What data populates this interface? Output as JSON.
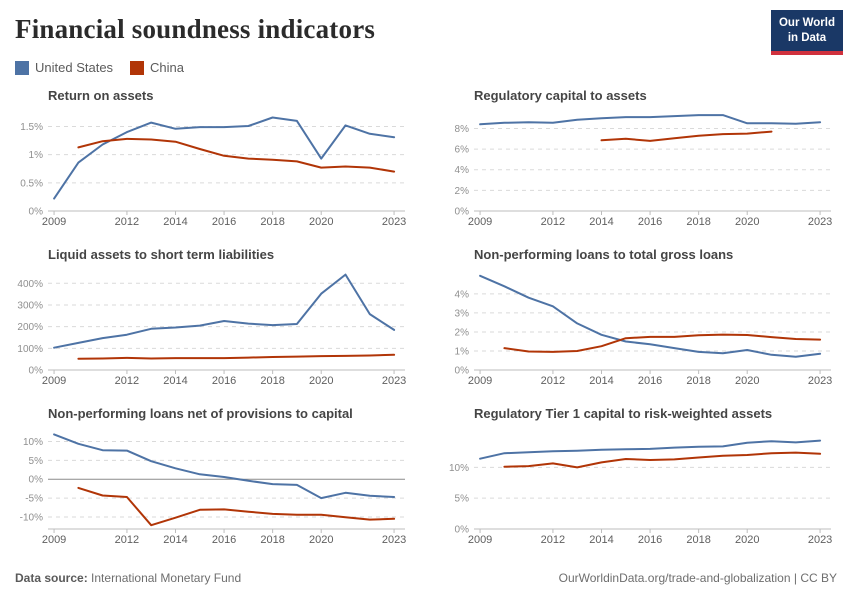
{
  "header": {
    "title": "Financial soundness indicators",
    "logo": {
      "line1": "Our World",
      "line2": "in Data"
    }
  },
  "legend": {
    "items": [
      {
        "label": "United States",
        "color": "#4e73a5"
      },
      {
        "label": "China",
        "color": "#b13507"
      }
    ]
  },
  "footer": {
    "source_label": "Data source:",
    "source_value": "International Monetary Fund",
    "credit": "OurWorldinData.org/trade-and-globalization | CC BY"
  },
  "colors": {
    "united_states": "#4e73a5",
    "china": "#b13507",
    "grid_dash": "#dadada",
    "axis_line": "#bdbdbd",
    "zero_line": "#8c8c8c",
    "x_tick_label": "#606060",
    "y_tick_label": "#8f8f8f",
    "logo_bg": "#1a3866",
    "logo_accent": "#d0313d"
  },
  "chart_data": [
    {
      "type": "line",
      "title": "Return on assets",
      "x_domain": [
        2008.75,
        2023.45
      ],
      "x_ticks": [
        2009,
        2012,
        2014,
        2016,
        2018,
        2020,
        2023
      ],
      "y_min": 0,
      "y_max": 1.74,
      "y_ticks": [
        {
          "v": 0,
          "label": "0%"
        },
        {
          "v": 0.5,
          "label": "0.5%"
        },
        {
          "v": 1,
          "label": "1%"
        },
        {
          "v": 1.5,
          "label": "1.5%"
        }
      ],
      "zero_line": false,
      "series": [
        {
          "name": "United States",
          "color": "#4e73a5",
          "years": [
            2009,
            2010,
            2011,
            2012,
            2013,
            2014,
            2015,
            2016,
            2017,
            2018,
            2019,
            2020,
            2021,
            2022,
            2023
          ],
          "values": [
            0.22,
            0.86,
            1.18,
            1.4,
            1.57,
            1.46,
            1.49,
            1.49,
            1.51,
            1.66,
            1.6,
            0.93,
            1.52,
            1.37,
            1.31
          ]
        },
        {
          "name": "China",
          "color": "#b13507",
          "years": [
            2010,
            2011,
            2012,
            2013,
            2014,
            2015,
            2016,
            2017,
            2018,
            2019,
            2020,
            2021,
            2022,
            2023
          ],
          "values": [
            1.13,
            1.24,
            1.28,
            1.27,
            1.23,
            1.1,
            0.98,
            0.93,
            0.91,
            0.88,
            0.77,
            0.79,
            0.77,
            0.7
          ]
        }
      ]
    },
    {
      "type": "line",
      "title": "Regulatory capital to assets",
      "x_domain": [
        2008.75,
        2023.45
      ],
      "x_ticks": [
        2009,
        2012,
        2014,
        2016,
        2018,
        2020,
        2023
      ],
      "y_min": 0,
      "y_max": 9.5,
      "y_ticks": [
        {
          "v": 0,
          "label": "0%"
        },
        {
          "v": 2,
          "label": "2%"
        },
        {
          "v": 4,
          "label": "4%"
        },
        {
          "v": 6,
          "label": "6%"
        },
        {
          "v": 8,
          "label": "8%"
        }
      ],
      "zero_line": false,
      "series": [
        {
          "name": "United States",
          "color": "#4e73a5",
          "years": [
            2009,
            2010,
            2011,
            2012,
            2013,
            2014,
            2015,
            2016,
            2017,
            2018,
            2019,
            2020,
            2021,
            2022,
            2023
          ],
          "values": [
            8.4,
            8.55,
            8.6,
            8.55,
            8.85,
            9.0,
            9.1,
            9.1,
            9.2,
            9.3,
            9.3,
            8.5,
            8.5,
            8.45,
            8.6
          ]
        },
        {
          "name": "China",
          "color": "#b13507",
          "years": [
            2014,
            2015,
            2016,
            2017,
            2018,
            2019,
            2020,
            2021
          ],
          "values": [
            6.85,
            7.0,
            6.8,
            7.05,
            7.3,
            7.45,
            7.5,
            7.7
          ]
        }
      ]
    },
    {
      "type": "line",
      "title": "Liquid assets to short term liabilities",
      "x_domain": [
        2008.75,
        2023.45
      ],
      "x_ticks": [
        2009,
        2012,
        2014,
        2016,
        2018,
        2020,
        2023
      ],
      "y_min": 0,
      "y_max": 452,
      "y_ticks": [
        {
          "v": 0,
          "label": "0%"
        },
        {
          "v": 100,
          "label": "100%"
        },
        {
          "v": 200,
          "label": "200%"
        },
        {
          "v": 300,
          "label": "300%"
        },
        {
          "v": 400,
          "label": "400%"
        }
      ],
      "zero_line": false,
      "series": [
        {
          "name": "United States",
          "color": "#4e73a5",
          "years": [
            2009,
            2010,
            2011,
            2012,
            2013,
            2014,
            2015,
            2016,
            2017,
            2018,
            2019,
            2020,
            2021,
            2022,
            2023
          ],
          "values": [
            103,
            125,
            147,
            163,
            190,
            196,
            205,
            226,
            214,
            207,
            212,
            352,
            440,
            258,
            185
          ]
        },
        {
          "name": "China",
          "color": "#b13507",
          "years": [
            2010,
            2011,
            2012,
            2013,
            2014,
            2015,
            2016,
            2017,
            2018,
            2019,
            2020,
            2021,
            2022,
            2023
          ],
          "values": [
            52,
            53,
            56,
            53,
            55,
            55,
            55,
            57,
            60,
            62,
            64,
            65,
            67,
            70
          ]
        }
      ]
    },
    {
      "type": "line",
      "title": "Non-performing loans to total gross loans",
      "x_domain": [
        2008.75,
        2023.45
      ],
      "x_ticks": [
        2009,
        2012,
        2014,
        2016,
        2018,
        2020,
        2023
      ],
      "y_min": 0,
      "y_max": 5.15,
      "y_ticks": [
        {
          "v": 0,
          "label": "0%"
        },
        {
          "v": 1,
          "label": "1%"
        },
        {
          "v": 2,
          "label": "2%"
        },
        {
          "v": 3,
          "label": "3%"
        },
        {
          "v": 4,
          "label": "4%"
        }
      ],
      "zero_line": false,
      "series": [
        {
          "name": "United States",
          "color": "#4e73a5",
          "years": [
            2009,
            2010,
            2011,
            2012,
            2013,
            2014,
            2015,
            2016,
            2017,
            2018,
            2019,
            2020,
            2021,
            2022,
            2023
          ],
          "values": [
            4.95,
            4.4,
            3.8,
            3.35,
            2.45,
            1.85,
            1.5,
            1.35,
            1.15,
            0.95,
            0.88,
            1.05,
            0.8,
            0.7,
            0.85
          ]
        },
        {
          "name": "China",
          "color": "#b13507",
          "years": [
            2010,
            2011,
            2012,
            2013,
            2014,
            2015,
            2016,
            2017,
            2018,
            2019,
            2020,
            2021,
            2022,
            2023
          ],
          "values": [
            1.15,
            0.97,
            0.95,
            1.0,
            1.25,
            1.67,
            1.74,
            1.74,
            1.83,
            1.86,
            1.84,
            1.73,
            1.63,
            1.6
          ]
        }
      ]
    },
    {
      "type": "line",
      "title": "Non-performing loans net of provisions to capital",
      "x_domain": [
        2008.75,
        2023.45
      ],
      "x_ticks": [
        2009,
        2012,
        2014,
        2016,
        2018,
        2020,
        2023
      ],
      "y_min": -13.2,
      "y_max": 12.8,
      "y_ticks": [
        {
          "v": -10,
          "label": "-10%"
        },
        {
          "v": -5,
          "label": "-5%"
        },
        {
          "v": 0,
          "label": "0%"
        },
        {
          "v": 5,
          "label": "5%"
        },
        {
          "v": 10,
          "label": "10%"
        }
      ],
      "zero_line": true,
      "series": [
        {
          "name": "United States",
          "color": "#4e73a5",
          "years": [
            2009,
            2010,
            2011,
            2012,
            2013,
            2014,
            2015,
            2016,
            2017,
            2018,
            2019,
            2020,
            2021,
            2022,
            2023
          ],
          "values": [
            11.9,
            9.4,
            7.7,
            7.6,
            4.8,
            2.9,
            1.3,
            0.6,
            -0.4,
            -1.3,
            -1.5,
            -5.0,
            -3.6,
            -4.4,
            -4.7
          ]
        },
        {
          "name": "China",
          "color": "#b13507",
          "years": [
            2010,
            2011,
            2012,
            2013,
            2014,
            2015,
            2016,
            2017,
            2018,
            2019,
            2020,
            2021,
            2022,
            2023
          ],
          "values": [
            -2.3,
            -4.3,
            -4.7,
            -12.2,
            -10.2,
            -8.1,
            -8.0,
            -8.6,
            -9.2,
            -9.4,
            -9.4,
            -10.1,
            -10.7,
            -10.5
          ]
        }
      ]
    },
    {
      "type": "line",
      "title": "Regulatory Tier 1 capital to risk-weighted assets",
      "x_domain": [
        2008.75,
        2023.45
      ],
      "x_ticks": [
        2009,
        2012,
        2014,
        2016,
        2018,
        2020,
        2023
      ],
      "y_min": 0,
      "y_max": 15.9,
      "y_ticks": [
        {
          "v": 0,
          "label": "0%"
        },
        {
          "v": 5,
          "label": "5%"
        },
        {
          "v": 10,
          "label": "10%"
        }
      ],
      "zero_line": false,
      "series": [
        {
          "name": "United States",
          "color": "#4e73a5",
          "years": [
            2009,
            2010,
            2011,
            2012,
            2013,
            2014,
            2015,
            2016,
            2017,
            2018,
            2019,
            2020,
            2021,
            2022,
            2023
          ],
          "values": [
            11.4,
            12.3,
            12.45,
            12.6,
            12.7,
            12.85,
            12.95,
            13.0,
            13.2,
            13.35,
            13.4,
            14.0,
            14.25,
            14.05,
            14.35
          ]
        },
        {
          "name": "China",
          "color": "#b13507",
          "years": [
            2010,
            2011,
            2012,
            2013,
            2014,
            2015,
            2016,
            2017,
            2018,
            2019,
            2020,
            2021,
            2022,
            2023
          ],
          "values": [
            10.1,
            10.2,
            10.65,
            10.0,
            10.8,
            11.35,
            11.2,
            11.3,
            11.6,
            11.9,
            12.0,
            12.3,
            12.4,
            12.2
          ]
        }
      ]
    }
  ]
}
